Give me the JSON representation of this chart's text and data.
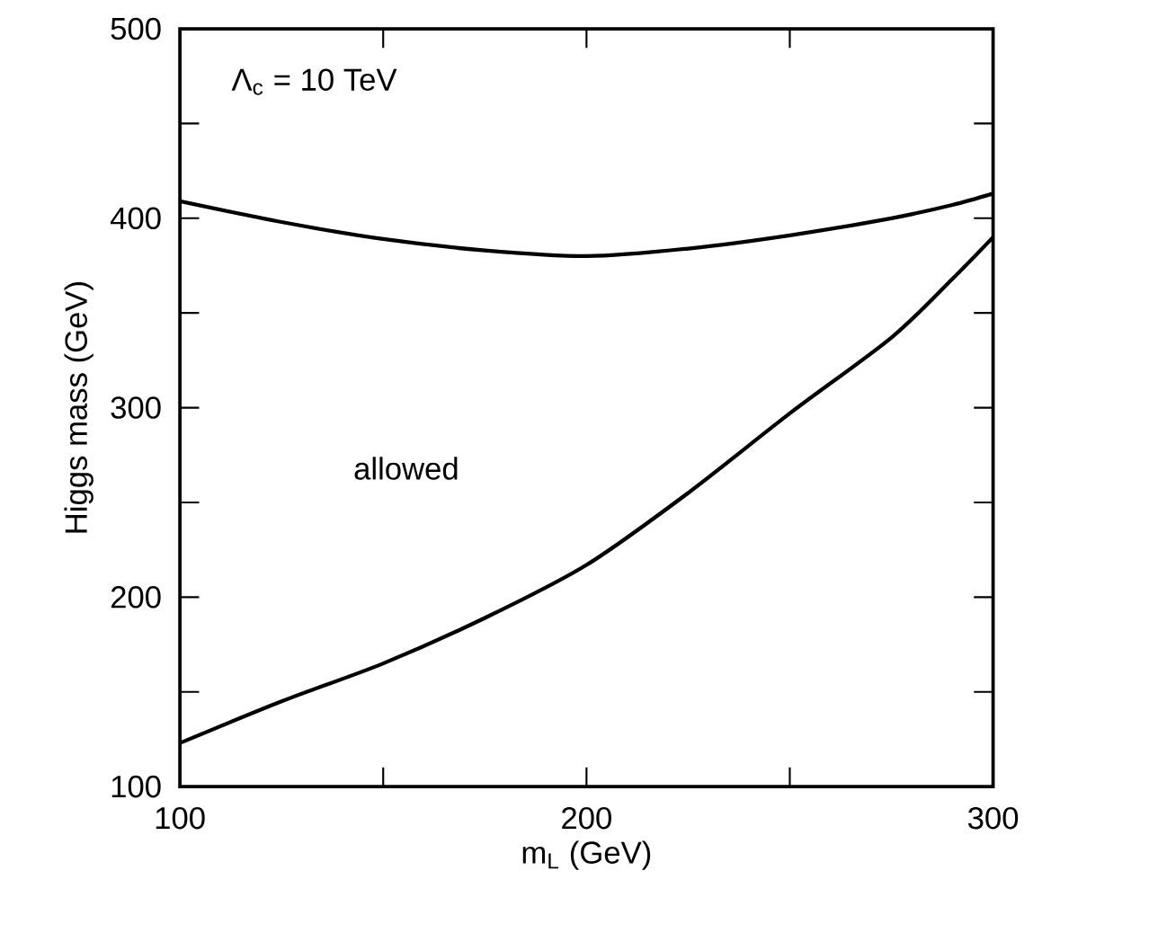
{
  "chart_data": {
    "type": "line",
    "xlabel": "m$_{L}$ (GeV)",
    "ylabel": "Higgs mass (GeV)",
    "annotations": [
      "Λ$_{c}$ = 10 TeV",
      "allowed"
    ],
    "xlim": [
      100,
      300
    ],
    "ylim": [
      100,
      500
    ],
    "xticks": [
      100,
      {
        "value": 150,
        "label": null
      },
      200,
      {
        "value": 250,
        "label": null
      },
      300
    ],
    "yticks": [
      100,
      {
        "value": 150,
        "label": null
      },
      200,
      {
        "value": 250,
        "label": null
      },
      300,
      {
        "value": 350,
        "label": null
      },
      400,
      {
        "value": 450,
        "label": null
      },
      500
    ],
    "marker": "none",
    "line_style": "solid",
    "series": [
      {
        "color": "#000000",
        "x": [
          100,
          125,
          150,
          175,
          200,
          225,
          250,
          275,
          290,
          300
        ],
        "values": [
          409,
          398,
          389,
          383,
          380,
          384,
          391,
          400,
          407,
          413
        ]
      },
      {
        "color": "#000000",
        "x": [
          100,
          125,
          150,
          175,
          200,
          225,
          250,
          275,
          290,
          300
        ],
        "values": [
          123,
          145,
          165,
          189,
          217,
          255,
          297,
          337,
          368,
          390
        ]
      }
    ]
  }
}
